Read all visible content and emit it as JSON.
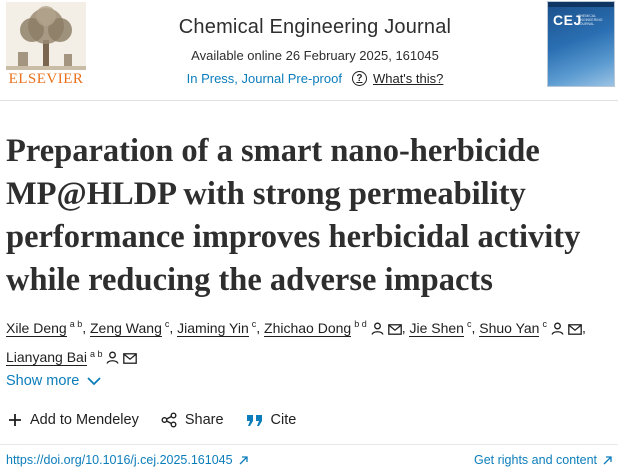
{
  "header": {
    "publisher_name": "ELSEVIER",
    "journal_name": "Chemical Engineering Journal",
    "availability": "Available online 26 February 2025, 161045",
    "status": "In Press, Journal Pre-proof",
    "whats_this": "What's this?",
    "cover_abbrev": "CEJ",
    "cover_subtitle": "CHEMICAL ENGINEERING JOURNAL"
  },
  "article": {
    "title": "Preparation of a smart nano-herbicide MP@HLDP with strong permeability performance improves herbicidal activity while reducing the adverse impacts",
    "authors": [
      {
        "name": "Xile Deng",
        "aff": "a b",
        "icons": false
      },
      {
        "name": "Zeng Wang",
        "aff": "c",
        "icons": false
      },
      {
        "name": "Jiaming Yin",
        "aff": "c",
        "icons": false
      },
      {
        "name": "Zhichao Dong",
        "aff": "b d",
        "icons": true
      },
      {
        "name": "Jie Shen",
        "aff": "c",
        "icons": false
      },
      {
        "name": "Shuo Yan",
        "aff": "c",
        "icons": true
      },
      {
        "name": "Lianyang Bai",
        "aff": "a b",
        "icons": true
      }
    ],
    "separator": ","
  },
  "show_more": "Show more",
  "actions": {
    "mendeley": "Add to Mendeley",
    "share": "Share",
    "cite": "Cite"
  },
  "footer": {
    "doi": "https://doi.org/10.1016/j.cej.2025.161045",
    "rights": "Get rights and content"
  },
  "colors": {
    "link": "#0c7dbb",
    "elsevier_orange": "#e9711c",
    "text": "#1f1f1f"
  }
}
